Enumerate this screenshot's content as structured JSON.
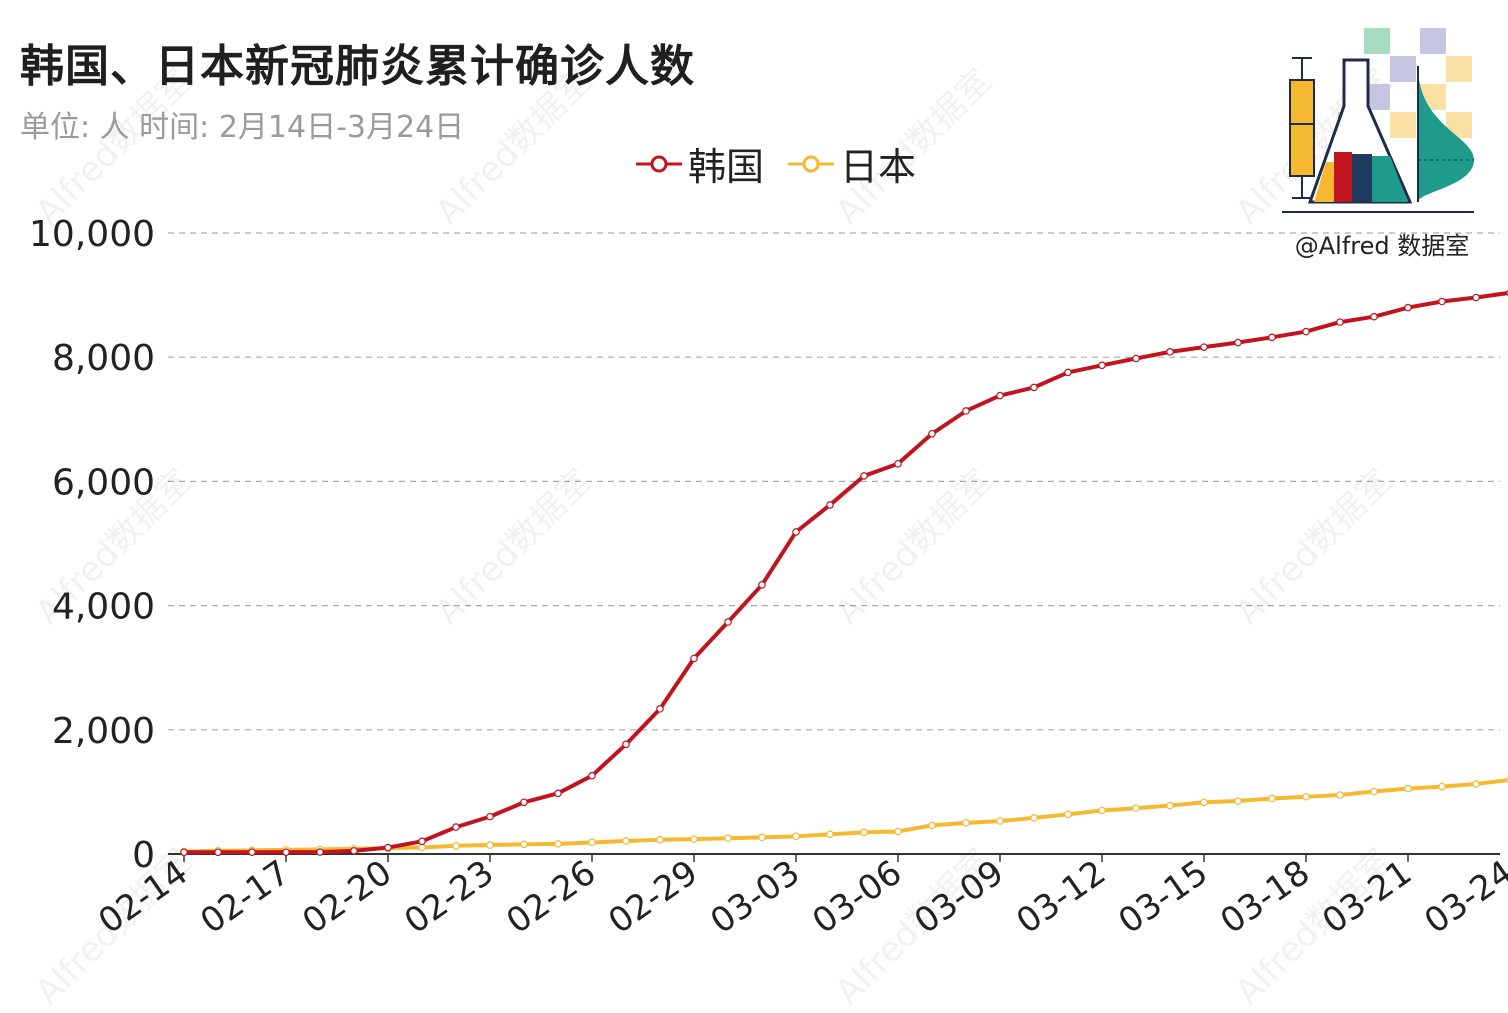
{
  "title": "韩国、日本新冠肺炎累计确诊人数",
  "subtitle": "单位: 人  时间: 2月14日-3月24日",
  "watermark": "Alfred数据室",
  "logo": {
    "text": "@Alfred 数据室",
    "icon": "flask-chart-logo-icon"
  },
  "colors": {
    "korea": "#c0141f",
    "japan": "#f5b831",
    "grid": "#aaaaaa",
    "axis": "#333333"
  },
  "chart_data": {
    "type": "line",
    "title": "韩国、日本新冠肺炎累计确诊人数",
    "ylim": [
      0,
      10000
    ],
    "yticks": [
      "0",
      "2,000",
      "4,000",
      "6,000",
      "8,000",
      "10,000"
    ],
    "ytick_values": [
      0,
      2000,
      4000,
      6000,
      8000,
      10000
    ],
    "grid": "horizontal dashed",
    "legend": "top-center",
    "xtick_labels": [
      "02-14",
      "02-17",
      "02-20",
      "02-23",
      "02-26",
      "02-29",
      "03-03",
      "03-06",
      "03-09",
      "03-12",
      "03-15",
      "03-18",
      "03-21",
      "03-24"
    ],
    "x": [
      "02-14",
      "02-15",
      "02-16",
      "02-17",
      "02-18",
      "02-19",
      "02-20",
      "02-21",
      "02-22",
      "02-23",
      "02-24",
      "02-25",
      "02-26",
      "02-27",
      "02-28",
      "02-29",
      "03-01",
      "03-02",
      "03-03",
      "03-04",
      "03-05",
      "03-06",
      "03-07",
      "03-08",
      "03-09",
      "03-10",
      "03-11",
      "03-12",
      "03-13",
      "03-14",
      "03-15",
      "03-16",
      "03-17",
      "03-18",
      "03-19",
      "03-20",
      "03-21",
      "03-22",
      "03-23",
      "03-24"
    ],
    "series": [
      {
        "name": "韩国",
        "values": [
          28,
          28,
          29,
          30,
          31,
          51,
          104,
          204,
          433,
          602,
          833,
          977,
          1261,
          1766,
          2337,
          3150,
          3736,
          4335,
          5186,
          5621,
          6088,
          6284,
          6767,
          7134,
          7382,
          7513,
          7755,
          7869,
          7979,
          8086,
          8162,
          8236,
          8320,
          8413,
          8565,
          8652,
          8799,
          8897,
          8961,
          9037
        ]
      },
      {
        "name": "日本",
        "values": [
          41,
          53,
          59,
          66,
          74,
          84,
          94,
          105,
          132,
          144,
          156,
          164,
          186,
          210,
          230,
          239,
          254,
          268,
          284,
          317,
          349,
          363,
          461,
          502,
          530,
          581,
          639,
          701,
          737,
          780,
          833,
          853,
          893,
          922,
          950,
          1006,
          1053,
          1086,
          1128,
          1193
        ]
      }
    ]
  }
}
